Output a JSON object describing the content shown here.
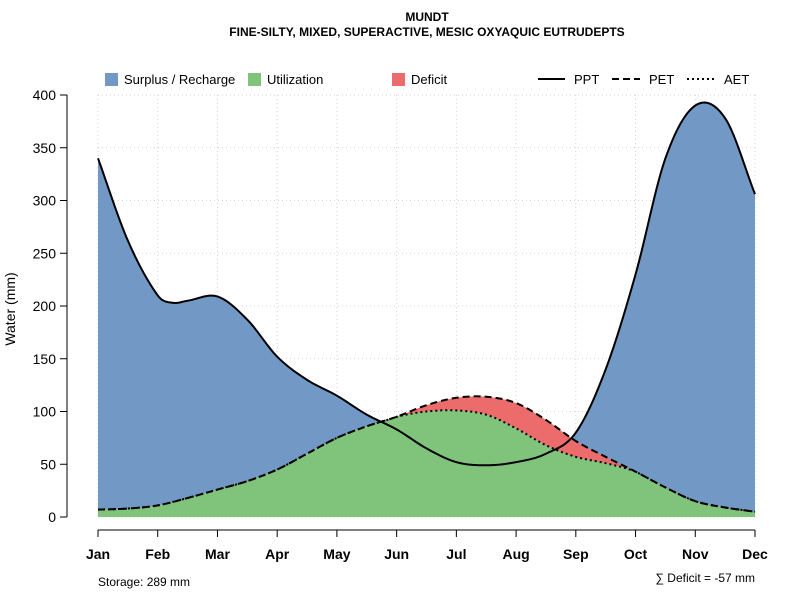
{
  "chart_data": {
    "type": "area",
    "title": "MUNDT",
    "subtitle": "FINE-SILTY, MIXED, SUPERACTIVE, MESIC OXYAQUIC EUTRUDEPTS",
    "ylabel": "Water (mm)",
    "xlabel": "",
    "ylim": [
      0,
      400
    ],
    "yticks": [
      0,
      50,
      100,
      150,
      200,
      250,
      300,
      350,
      400
    ],
    "categories": [
      "Jan",
      "Feb",
      "Mar",
      "Apr",
      "May",
      "Jun",
      "Jul",
      "Aug",
      "Sep",
      "Oct",
      "Nov",
      "Dec"
    ],
    "grid": true,
    "legend_position": "top",
    "series": [
      {
        "name": "PPT",
        "style": "solid",
        "x": [
          1,
          1.5,
          2,
          2.25,
          2.5,
          3,
          3.5,
          4,
          4.5,
          5,
          5.5,
          6,
          6.5,
          7,
          7.5,
          8,
          8.5,
          9,
          9.5,
          10,
          10.5,
          11,
          11.5,
          12
        ],
        "values": [
          340,
          262,
          210,
          203,
          205,
          209,
          187,
          152,
          130,
          115,
          97,
          83,
          65,
          52,
          49,
          52,
          60,
          80,
          140,
          230,
          340,
          390,
          378,
          306
        ]
      },
      {
        "name": "PET",
        "style": "dashed",
        "x": [
          1,
          1.5,
          2,
          2.5,
          3,
          3.5,
          4,
          4.5,
          5,
          5.5,
          6,
          6.5,
          7,
          7.5,
          8,
          8.5,
          9,
          9.5,
          10,
          10.5,
          11,
          11.5,
          12
        ],
        "values": [
          7,
          8,
          11,
          18,
          26,
          34,
          45,
          60,
          75,
          86,
          95,
          106,
          113,
          114,
          108,
          92,
          72,
          57,
          43,
          28,
          15,
          9,
          5
        ]
      },
      {
        "name": "AET",
        "style": "dotted",
        "x": [
          1,
          1.5,
          2,
          2.5,
          3,
          3.5,
          4,
          4.5,
          5,
          5.5,
          6,
          6.5,
          7,
          7.5,
          8,
          8.5,
          9,
          9.5,
          10,
          10.5,
          11,
          11.5,
          12
        ],
        "values": [
          7,
          8,
          11,
          18,
          26,
          34,
          45,
          60,
          75,
          86,
          95,
          100,
          101,
          97,
          84,
          68,
          57,
          51,
          43,
          28,
          15,
          9,
          5
        ]
      }
    ],
    "legend": [
      {
        "label": "Surplus / Recharge",
        "kind": "box",
        "color": "#7299C6"
      },
      {
        "label": "Utilization",
        "kind": "box",
        "color": "#80C47C"
      },
      {
        "label": "Deficit",
        "kind": "box",
        "color": "#EC6C6C"
      },
      {
        "label": "PPT",
        "kind": "line",
        "dash": "solid"
      },
      {
        "label": "PET",
        "kind": "line",
        "dash": "dashed"
      },
      {
        "label": "AET",
        "kind": "line",
        "dash": "dotted"
      }
    ],
    "colors": {
      "surplus": "#7299C6",
      "utilization": "#80C47C",
      "deficit": "#EC6C6C",
      "grid": "#D3D3D3",
      "line": "#000000"
    },
    "annotations": {
      "storage": "Storage: 289 mm",
      "deficit": "∑ Deficit = -57 mm"
    }
  }
}
